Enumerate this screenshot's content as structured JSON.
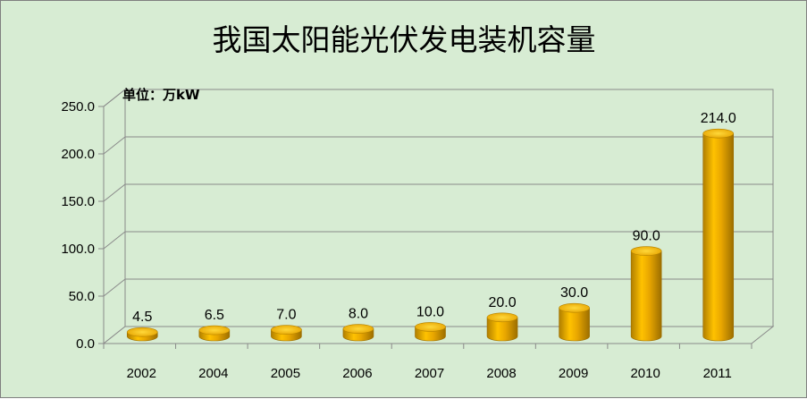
{
  "chart_data": {
    "type": "bar",
    "title": "我国太阳能光伏发电装机容量",
    "unit_note": "单位：万kW",
    "categories": [
      "2002",
      "2004",
      "2005",
      "2006",
      "2007",
      "2008",
      "2009",
      "2010",
      "2011"
    ],
    "values": [
      4.5,
      6.5,
      7.0,
      8.0,
      10.0,
      20.0,
      30.0,
      90.0,
      214.0
    ],
    "data_labels": [
      "4.5",
      "6.5",
      "7.0",
      "8.0",
      "10.0",
      "20.0",
      "30.0",
      "90.0",
      "214.0"
    ],
    "ylim": [
      0,
      250
    ],
    "yticks": [
      "0.0",
      "50.0",
      "100.0",
      "150.0",
      "200.0",
      "250.0"
    ],
    "grid": true,
    "bar_color": "#e8a600",
    "background_color": "#d7ecd3"
  }
}
